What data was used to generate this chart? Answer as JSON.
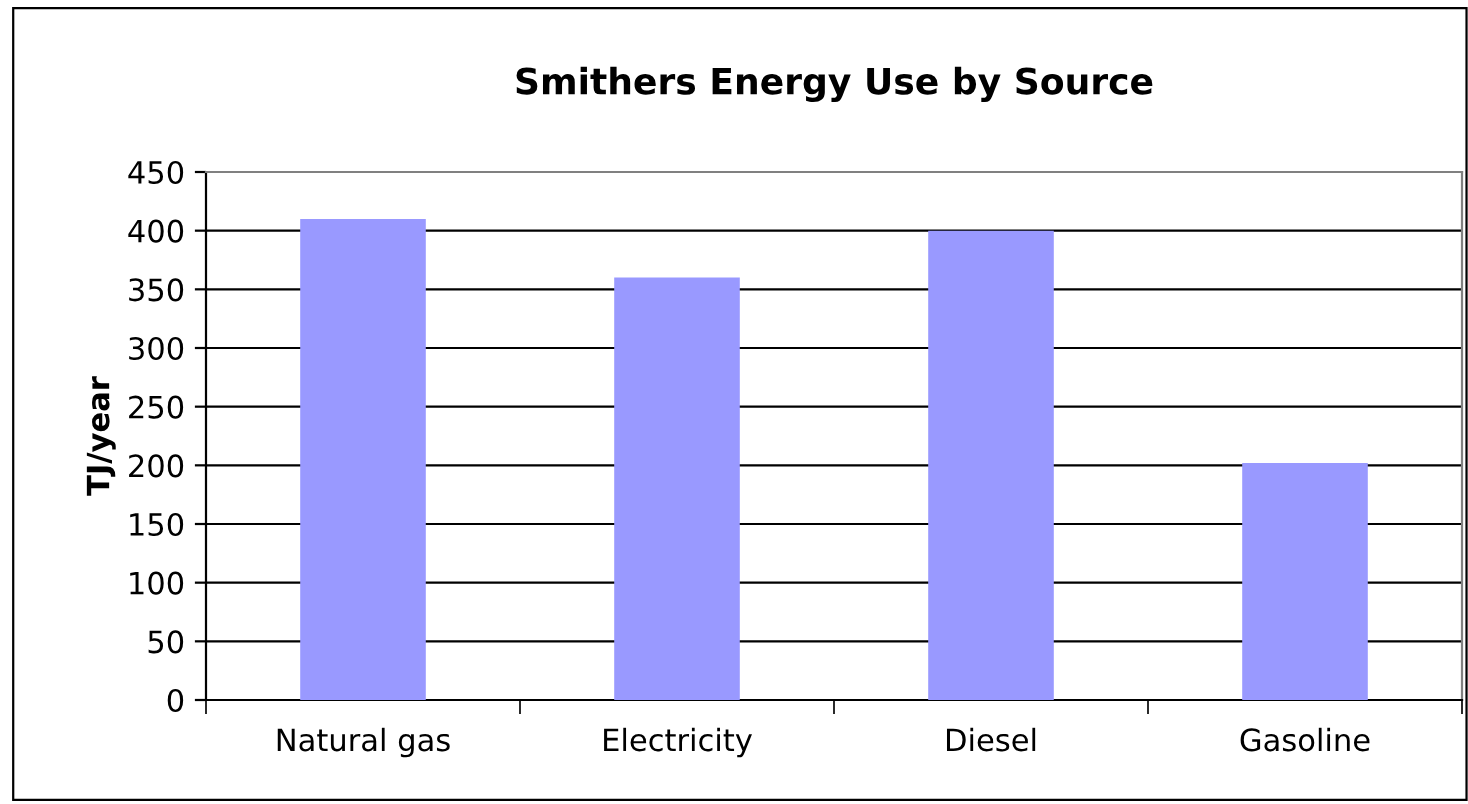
{
  "chart_data": {
    "type": "bar",
    "title": "Smithers Energy Use by Source",
    "ylabel": "TJ/year",
    "categories": [
      "Natural gas",
      "Electricity",
      "Diesel",
      "Gasoline"
    ],
    "values": [
      410,
      360,
      400,
      202
    ],
    "color": "#9999ff",
    "ylim": [
      0,
      450
    ],
    "yticks": [
      0,
      50,
      100,
      150,
      200,
      250,
      300,
      350,
      400,
      450
    ],
    "grid": "y",
    "legend": false
  }
}
